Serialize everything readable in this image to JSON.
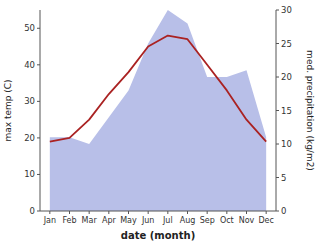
{
  "chart_data": {
    "type": "line",
    "categories": [
      "Jan",
      "Feb",
      "Mar",
      "Apr",
      "May",
      "Jun",
      "Jul",
      "Aug",
      "Sep",
      "Oct",
      "Nov",
      "Dec"
    ],
    "xlabel": "date (month)",
    "ylabel": "max temp (C)",
    "y2label": "med. precipitation (kg/m2)",
    "series": [
      {
        "type": "area",
        "axis": "y2",
        "color": "#b8bfe8",
        "values": [
          11,
          11,
          10,
          14,
          18,
          25,
          30,
          28,
          20,
          20,
          21,
          11
        ]
      },
      {
        "type": "line",
        "color": "#aa2222",
        "values": [
          19,
          20,
          25,
          32,
          38,
          45,
          48,
          47,
          40,
          33,
          25,
          19
        ]
      }
    ],
    "ylim": [
      0,
      55
    ],
    "yticks": [
      0,
      10,
      20,
      30,
      40,
      50
    ],
    "y2lim": [
      0,
      30
    ],
    "y2ticks": [
      0,
      5,
      10,
      15,
      20,
      25,
      30
    ],
    "grid": false
  }
}
